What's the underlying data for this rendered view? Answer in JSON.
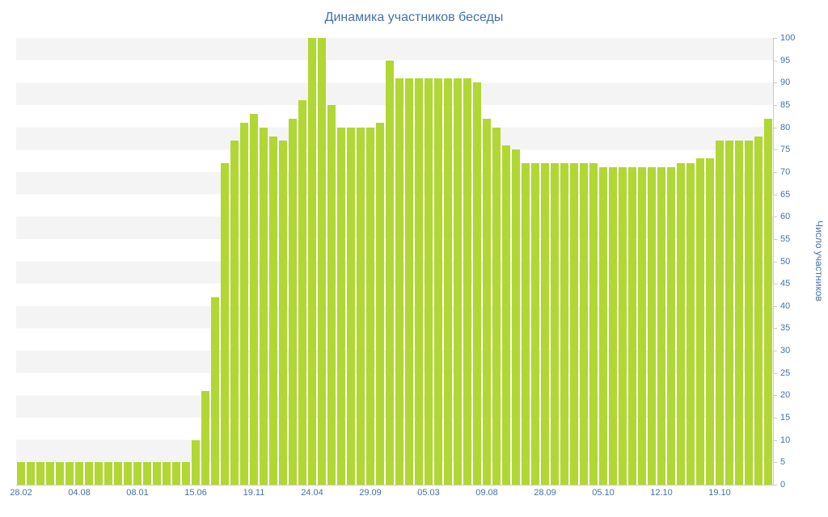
{
  "chart_data": {
    "type": "bar",
    "title": "Динамика участников беседы",
    "xlabel": "",
    "ylabel": "Число участников",
    "ylim": [
      0,
      100
    ],
    "legend": "none",
    "yaxis_position": "right",
    "grid": "alternating-horizontal-bands-of-5",
    "y_ticks": [
      0,
      5,
      10,
      15,
      20,
      25,
      30,
      35,
      40,
      45,
      50,
      55,
      60,
      65,
      70,
      75,
      80,
      85,
      90,
      95,
      100
    ],
    "x_ticks": [
      {
        "label": "28.02",
        "index": 0
      },
      {
        "label": "04.08",
        "index": 6
      },
      {
        "label": "08.01",
        "index": 12
      },
      {
        "label": "15.06",
        "index": 18
      },
      {
        "label": "19.11",
        "index": 24
      },
      {
        "label": "24.04",
        "index": 30
      },
      {
        "label": "29.09",
        "index": 36
      },
      {
        "label": "05.03",
        "index": 42
      },
      {
        "label": "09.08",
        "index": 48
      },
      {
        "label": "28.09",
        "index": 54
      },
      {
        "label": "05.10",
        "index": 60
      },
      {
        "label": "12.10",
        "index": 66
      },
      {
        "label": "19.10",
        "index": 72
      }
    ],
    "values": [
      5,
      5,
      5,
      5,
      5,
      5,
      5,
      5,
      5,
      5,
      5,
      5,
      5,
      5,
      5,
      5,
      5,
      5,
      10,
      21,
      42,
      72,
      77,
      81,
      83,
      80,
      78,
      77,
      82,
      86,
      100,
      100,
      85,
      80,
      80,
      80,
      80,
      81,
      95,
      91,
      91,
      91,
      91,
      91,
      91,
      91,
      91,
      90,
      82,
      80,
      76,
      75,
      72,
      72,
      72,
      72,
      72,
      72,
      72,
      72,
      71,
      71,
      71,
      71,
      71,
      71,
      71,
      71,
      72,
      72,
      73,
      73,
      77,
      77,
      77,
      77,
      78,
      82
    ],
    "colors": {
      "bar": "#b1d734",
      "label": "#4572a7",
      "band": "#f4f4f4",
      "background": "#ffffff",
      "axis": "#c9c9c9"
    }
  }
}
